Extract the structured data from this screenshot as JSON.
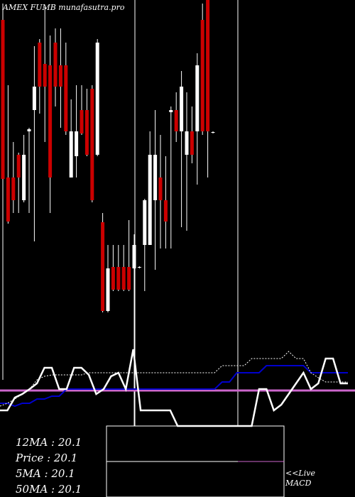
{
  "header": {
    "title": "AMEX  FUMB munafasutra.pro"
  },
  "stats": {
    "ma12": "12MA : 20.1",
    "price": "Price   : 20.1",
    "ma5": "5MA : 20.1",
    "ma50": "50MA : 20.1"
  },
  "macd": {
    "live": "<<Live",
    "label": "MACD"
  },
  "colors": {
    "up": "#ffffff",
    "down": "#cc0000",
    "ma_blue": "#0000cc",
    "ma_pink": "#cc66cc",
    "background": "#000000"
  },
  "chart_data": {
    "type": "candlestick",
    "candles": [
      {
        "dir": "down",
        "wick": [
          5,
          535
        ],
        "body": [
          28,
          252
        ]
      },
      {
        "dir": "down",
        "wick": [
          120,
          315
        ],
        "body": [
          250,
          312
        ]
      },
      {
        "dir": "down",
        "wick": [
          200,
          300
        ],
        "body": [
          250,
          282
        ]
      },
      {
        "dir": "down",
        "wick": [
          215,
          300
        ],
        "body": [
          218,
          250
        ]
      },
      {
        "dir": "up",
        "wick": [
          190,
          285
        ],
        "body": [
          218,
          282
        ]
      },
      {
        "dir": "up",
        "wick": [
          180,
          300
        ],
        "body": [
          182,
          185
        ]
      },
      {
        "dir": "up",
        "wick": [
          65,
          340
        ],
        "body": [
          122,
          155
        ]
      },
      {
        "dir": "down",
        "wick": [
          55,
          160
        ],
        "body": [
          60,
          122
        ]
      },
      {
        "dir": "down",
        "wick": [
          10,
          200
        ],
        "body": [
          90,
          122
        ]
      },
      {
        "dir": "down",
        "wick": [
          50,
          300
        ],
        "body": [
          92,
          250
        ]
      },
      {
        "dir": "down",
        "wick": [
          40,
          150
        ],
        "body": [
          60,
          122
        ]
      },
      {
        "dir": "down",
        "wick": [
          40,
          180
        ],
        "body": [
          92,
          122
        ]
      },
      {
        "dir": "down",
        "wick": [
          60,
          190
        ],
        "body": [
          92,
          185
        ]
      },
      {
        "dir": "up",
        "wick": [
          140,
          250
        ],
        "body": [
          185,
          250
        ]
      },
      {
        "dir": "up",
        "wick": [
          120,
          250
        ],
        "body": [
          185,
          220
        ]
      },
      {
        "dir": "down",
        "wick": [
          120,
          190
        ],
        "body": [
          155,
          188
        ]
      },
      {
        "dir": "down",
        "wick": [
          125,
          220
        ],
        "body": [
          155,
          218
        ]
      },
      {
        "dir": "down",
        "wick": [
          120,
          285
        ],
        "body": [
          125,
          282
        ]
      },
      {
        "dir": "up",
        "wick": [
          55,
          220
        ],
        "body": [
          60,
          218
        ]
      },
      {
        "dir": "down",
        "wick": [
          300,
          440
        ],
        "body": [
          313,
          438
        ]
      },
      {
        "dir": "up",
        "wick": [
          345,
          440
        ],
        "body": [
          378,
          438
        ]
      },
      {
        "dir": "down",
        "wick": [
          345,
          410
        ],
        "body": [
          376,
          408
        ]
      },
      {
        "dir": "down",
        "wick": [
          345,
          410
        ],
        "body": [
          376,
          408
        ]
      },
      {
        "dir": "down",
        "wick": [
          345,
          410
        ],
        "body": [
          376,
          408
        ]
      },
      {
        "dir": "down",
        "wick": [
          310,
          410
        ],
        "body": [
          376,
          408
        ]
      },
      {
        "dir": "up",
        "wick": [
          330,
          600
        ],
        "body": [
          345,
          378
        ]
      },
      {
        "dir": "up",
        "wick": [
          375,
          378
        ],
        "body": [
          376,
          377
        ]
      },
      {
        "dir": "up",
        "wick": [
          280,
          410
        ],
        "body": [
          282,
          345
        ]
      },
      {
        "dir": "up",
        "wick": [
          185,
          345
        ],
        "body": [
          218,
          345
        ]
      },
      {
        "dir": "up",
        "wick": [
          155,
          380
        ],
        "body": [
          218,
          282
        ]
      },
      {
        "dir": "down",
        "wick": [
          190,
          350
        ],
        "body": [
          250,
          282
        ]
      },
      {
        "dir": "down",
        "wick": [
          220,
          350
        ],
        "body": [
          282,
          312
        ]
      },
      {
        "dir": "up",
        "wick": [
          150,
          350
        ],
        "body": [
          155,
          158
        ]
      },
      {
        "dir": "down",
        "wick": [
          130,
          200
        ],
        "body": [
          155,
          185
        ]
      },
      {
        "dir": "up",
        "wick": [
          100,
          320
        ],
        "body": [
          122,
          185
        ]
      },
      {
        "dir": "up",
        "wick": [
          130,
          325
        ],
        "body": [
          185,
          218
        ]
      },
      {
        "dir": "down",
        "wick": [
          150,
          230
        ],
        "body": [
          185,
          218
        ]
      },
      {
        "dir": "up",
        "wick": [
          75,
          260
        ],
        "body": [
          92,
          185
        ]
      },
      {
        "dir": "down",
        "wick": [
          5,
          190
        ],
        "body": [
          28,
          185
        ]
      },
      {
        "dir": "down",
        "wick": [
          0,
          250
        ],
        "body": [
          0,
          185
        ]
      },
      {
        "dir": "up",
        "wick": [
          185,
          188
        ],
        "body": [
          186,
          187
        ]
      }
    ],
    "ma_white": [
      578,
      578,
      560,
      555,
      548,
      540,
      518,
      518,
      548,
      548,
      518,
      518,
      528,
      555,
      548,
      530,
      525,
      548,
      492,
      578,
      578,
      578,
      578,
      578,
      600,
      600,
      600,
      600,
      600,
      600,
      600,
      600,
      600,
      600,
      600,
      548,
      548,
      578,
      570,
      555,
      540,
      525,
      548,
      540,
      505,
      505,
      540,
      540
    ],
    "ma_blue": [
      568,
      568,
      572,
      568,
      568,
      562,
      562,
      558,
      558,
      548,
      548,
      548,
      548,
      548,
      548,
      548,
      548,
      548,
      548,
      548,
      548,
      548,
      548,
      548,
      548,
      548,
      548,
      548,
      548,
      548,
      538,
      538,
      525,
      525,
      525,
      525,
      515,
      515,
      515,
      515,
      515,
      515,
      525,
      525,
      525,
      525,
      525,
      525
    ],
    "ma_dotted": [
      572,
      568,
      562,
      555,
      548,
      535,
      530,
      528,
      528,
      528,
      528,
      528,
      525,
      525,
      525,
      525,
      525,
      525,
      525,
      525,
      525,
      525,
      525,
      525,
      525,
      525,
      525,
      525,
      525,
      525,
      515,
      515,
      515,
      515,
      505,
      505,
      505,
      505,
      505,
      495,
      505,
      505,
      525,
      532,
      538,
      538,
      538,
      538
    ],
    "ma_pink": 550,
    "xlabel": "",
    "ylabel": ""
  }
}
